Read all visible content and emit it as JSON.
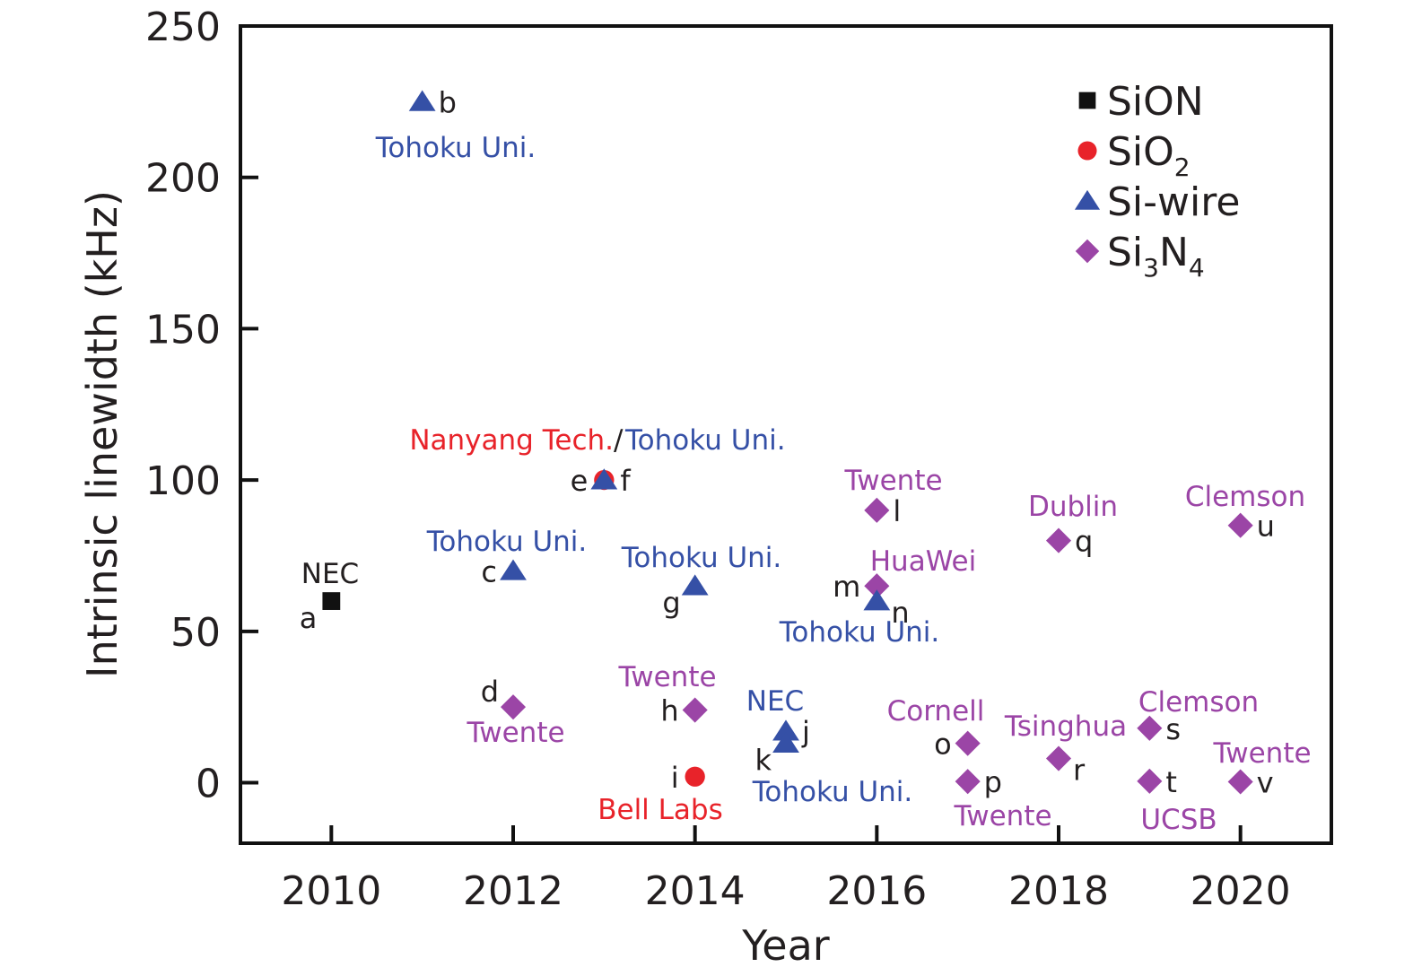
{
  "chart_data": {
    "type": "scatter",
    "title": "",
    "xlabel": "Year",
    "ylabel": "Intrinsic linewidth (kHz)",
    "xlim": [
      2009,
      2021
    ],
    "ylim": [
      -20,
      250
    ],
    "xticks": [
      2010,
      2012,
      2014,
      2016,
      2018,
      2020
    ],
    "yticks": [
      0,
      50,
      100,
      150,
      200,
      250
    ],
    "grid": false,
    "legend_position": "top-right",
    "series": [
      {
        "name": "SiON",
        "label_main": "SiON",
        "label_sub": "",
        "label_tail": "",
        "marker": "square",
        "color": "#111111"
      },
      {
        "name": "SiO2",
        "label_main": "SiO",
        "label_sub": "2",
        "label_tail": "",
        "marker": "circle",
        "color": "#e8232a"
      },
      {
        "name": "Si-wire",
        "label_main": "Si-wire",
        "label_sub": "",
        "label_tail": "",
        "marker": "triangle",
        "color": "#3550a6"
      },
      {
        "name": "Si3N4",
        "label_main": "Si",
        "label_sub": "3",
        "label_tail": "N",
        "label_sub2": "4",
        "marker": "diamond",
        "color": "#9b45a6"
      }
    ],
    "points": [
      {
        "id": "a",
        "series": "SiON",
        "x": 2010,
        "y": 60,
        "letter_pos": "bottom-left"
      },
      {
        "id": "b",
        "series": "Si-wire",
        "x": 2011,
        "y": 225,
        "letter_pos": "right"
      },
      {
        "id": "c",
        "series": "Si-wire",
        "x": 2012,
        "y": 70,
        "letter_pos": "left"
      },
      {
        "id": "d",
        "series": "Si3N4",
        "x": 2012,
        "y": 25,
        "letter_pos": "top-left"
      },
      {
        "id": "e",
        "series": "SiO2",
        "x": 2013,
        "y": 100,
        "letter_pos": "left"
      },
      {
        "id": "f",
        "series": "Si-wire",
        "x": 2013,
        "y": 100,
        "letter_pos": "right"
      },
      {
        "id": "g",
        "series": "Si-wire",
        "x": 2014,
        "y": 65,
        "letter_pos": "bottom-left"
      },
      {
        "id": "h",
        "series": "Si3N4",
        "x": 2014,
        "y": 24,
        "letter_pos": "left"
      },
      {
        "id": "i",
        "series": "SiO2",
        "x": 2014,
        "y": 2,
        "letter_pos": "left"
      },
      {
        "id": "j",
        "series": "Si-wire",
        "x": 2015,
        "y": 17,
        "letter_pos": "right"
      },
      {
        "id": "k",
        "series": "Si-wire",
        "x": 2015,
        "y": 13,
        "letter_pos": "bottom-left"
      },
      {
        "id": "l",
        "series": "Si3N4",
        "x": 2016,
        "y": 90,
        "letter_pos": "right"
      },
      {
        "id": "m",
        "series": "Si3N4",
        "x": 2016,
        "y": 65,
        "letter_pos": "left"
      },
      {
        "id": "n",
        "series": "Si-wire",
        "x": 2016,
        "y": 60,
        "letter_pos": "bottom-right"
      },
      {
        "id": "o",
        "series": "Si3N4",
        "x": 2017,
        "y": 13,
        "letter_pos": "left"
      },
      {
        "id": "p",
        "series": "Si3N4",
        "x": 2017,
        "y": 0.4,
        "letter_pos": "right"
      },
      {
        "id": "q",
        "series": "Si3N4",
        "x": 2018,
        "y": 80,
        "letter_pos": "right"
      },
      {
        "id": "r",
        "series": "Si3N4",
        "x": 2018,
        "y": 8,
        "letter_pos": "bottom-right"
      },
      {
        "id": "s",
        "series": "Si3N4",
        "x": 2019,
        "y": 18,
        "letter_pos": "right"
      },
      {
        "id": "t",
        "series": "Si3N4",
        "x": 2019,
        "y": 0.5,
        "letter_pos": "right"
      },
      {
        "id": "u",
        "series": "Si3N4",
        "x": 2020,
        "y": 85,
        "letter_pos": "right"
      },
      {
        "id": "v",
        "series": "Si3N4",
        "x": 2020,
        "y": 0.3,
        "letter_pos": "right"
      }
    ],
    "annotations": [
      {
        "text": "Tohoku Uni.",
        "color": "#3550a6",
        "near": "b"
      },
      {
        "text": "NEC",
        "color": "#231f20",
        "near": "a"
      },
      {
        "text": "Tohoku Uni.",
        "color": "#3550a6",
        "near": "c"
      },
      {
        "text": "Twente",
        "color": "#9b45a6",
        "near": "d"
      },
      {
        "text": "Nanyang Tech.",
        "color": "#e8232a",
        "near": "e"
      },
      {
        "text": "/",
        "color": "#231f20",
        "near": "e-f"
      },
      {
        "text": "Tohoku Uni.",
        "color": "#3550a6",
        "near": "f"
      },
      {
        "text": "Tohoku Uni.",
        "color": "#3550a6",
        "near": "g"
      },
      {
        "text": "Twente",
        "color": "#9b45a6",
        "near": "h"
      },
      {
        "text": "Bell Labs",
        "color": "#e8232a",
        "near": "i"
      },
      {
        "text": "NEC",
        "color": "#3550a6",
        "near": "j"
      },
      {
        "text": "Tohoku Uni.",
        "color": "#3550a6",
        "near": "k"
      },
      {
        "text": "Twente",
        "color": "#9b45a6",
        "near": "l"
      },
      {
        "text": "HuaWei",
        "color": "#9b45a6",
        "near": "m"
      },
      {
        "text": "Tohoku Uni.",
        "color": "#3550a6",
        "near": "n"
      },
      {
        "text": "Cornell",
        "color": "#9b45a6",
        "near": "o"
      },
      {
        "text": "Twente",
        "color": "#9b45a6",
        "near": "p"
      },
      {
        "text": "Dublin",
        "color": "#9b45a6",
        "near": "q"
      },
      {
        "text": "Tsinghua",
        "color": "#9b45a6",
        "near": "r"
      },
      {
        "text": "Clemson",
        "color": "#9b45a6",
        "near": "s"
      },
      {
        "text": "UCSB",
        "color": "#9b45a6",
        "near": "t"
      },
      {
        "text": "Clemson",
        "color": "#9b45a6",
        "near": "u"
      },
      {
        "text": "Twente",
        "color": "#9b45a6",
        "near": "v"
      }
    ]
  }
}
